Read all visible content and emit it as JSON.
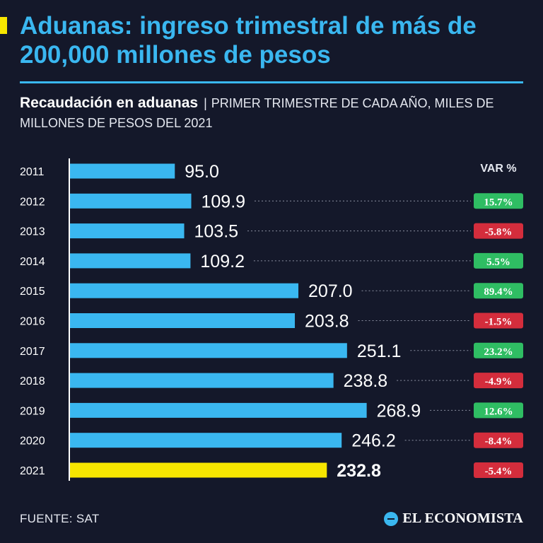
{
  "headline": "Aduanas: ingreso trimestral de más de 200,000 millones de pesos",
  "subtitle": {
    "strong": "Recaudación en aduanas",
    "separator": "|",
    "rest": "PRIMER TRIMESTRE DE CADA AÑO, MILES DE MILLONES DE PESOS DEL 2021"
  },
  "footer": {
    "source": "FUENTE: SAT",
    "brand": "EL ECONOMISTA"
  },
  "colors": {
    "background": "#14182a",
    "title": "#3ab7f0",
    "bar": "#3ab7f0",
    "highlight_bar": "#f7e600",
    "positive": "#2fbd63",
    "negative": "#d42d3c",
    "text": "#ffffff"
  },
  "chart_data": {
    "type": "bar",
    "orientation": "horizontal",
    "title": "Recaudación en aduanas",
    "xlabel": "",
    "ylabel": "",
    "xlim": [
      0,
      320
    ],
    "var_header": "VAR %",
    "categories": [
      "2011",
      "2012",
      "2013",
      "2014",
      "2015",
      "2016",
      "2017",
      "2018",
      "2019",
      "2020",
      "2021"
    ],
    "values": [
      95.0,
      109.9,
      103.5,
      109.2,
      207.0,
      203.8,
      251.1,
      238.8,
      268.9,
      246.2,
      232.8
    ],
    "value_labels": [
      "95.0",
      "109.9",
      "103.5",
      "109.2",
      "207.0",
      "203.8",
      "251.1",
      "238.8",
      "268.9",
      "246.2",
      "232.8"
    ],
    "variations": [
      "",
      "15.7%",
      "-5.8%",
      "5.5%",
      "89.4%",
      "-1.5%",
      "23.2%",
      "-4.9%",
      "12.6%",
      "-8.4%",
      "-5.4%"
    ],
    "highlight": "2021"
  }
}
